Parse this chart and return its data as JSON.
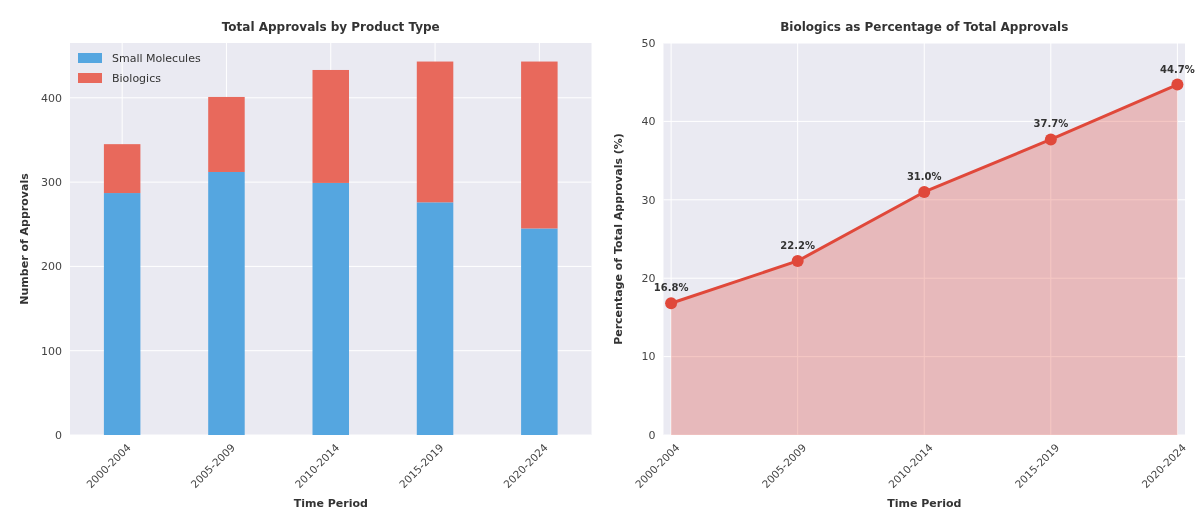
{
  "chart_data": [
    {
      "type": "bar",
      "title": "Total Approvals by Product Type",
      "xlabel": "Time Period",
      "ylabel": "Number of Approvals",
      "categories": [
        "2000-2004",
        "2005-2009",
        "2010-2014",
        "2015-2019",
        "2020-2024"
      ],
      "stacked": true,
      "series": [
        {
          "name": "Small Molecules",
          "color": "#55a6e0",
          "values": [
            287,
            312,
            299,
            276,
            245
          ]
        },
        {
          "name": "Biologics",
          "color": "#e8695c",
          "values": [
            58,
            89,
            134,
            167,
            198
          ]
        }
      ],
      "ylim": [
        0,
        465
      ],
      "yticks": [
        0,
        100,
        200,
        300,
        400
      ],
      "grid": true,
      "legend": "top left"
    },
    {
      "type": "area",
      "title": "Biologics as Percentage of Total Approvals",
      "xlabel": "Time Period",
      "ylabel": "Percentage of Total Approvals (%)",
      "categories": [
        "2000-2004",
        "2005-2009",
        "2010-2014",
        "2015-2019",
        "2020-2024"
      ],
      "series": [
        {
          "color": "#e0483a",
          "values": [
            16.8,
            22.2,
            31.0,
            37.7,
            44.7
          ],
          "value_labels": [
            "16.8%",
            "22.2%",
            "31.0%",
            "37.7%",
            "44.7%"
          ]
        }
      ],
      "ylim": [
        0,
        50
      ],
      "yticks": [
        0,
        10,
        20,
        30,
        40,
        50
      ],
      "grid": true,
      "marker": "circle"
    }
  ]
}
